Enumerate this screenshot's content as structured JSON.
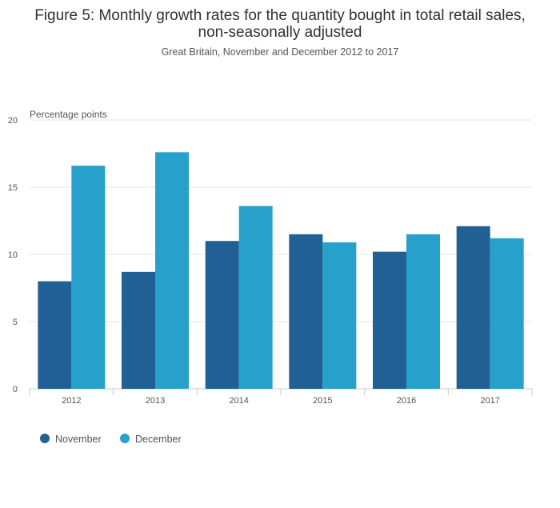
{
  "chart_data": {
    "type": "bar",
    "title_line1": "Figure 5: Monthly growth rates for the quantity bought in total retail sales,",
    "title_line2": "non-seasonally adjusted",
    "subtitle": "Great Britain, November and December 2012 to 2017",
    "ylabel": "Percentage points",
    "xlabel": "",
    "ylim": [
      0,
      20
    ],
    "yticks": [
      0,
      5,
      10,
      15,
      20
    ],
    "grid": true,
    "legend_position": "bottom-left",
    "categories": [
      "2012",
      "2013",
      "2014",
      "2015",
      "2016",
      "2017"
    ],
    "series": [
      {
        "name": "November",
        "color": "#206095",
        "values": [
          8.0,
          8.7,
          11.0,
          11.5,
          10.2,
          12.1
        ]
      },
      {
        "name": "December",
        "color": "#27a0cc",
        "values": [
          16.6,
          17.6,
          13.6,
          10.9,
          11.5,
          11.2
        ]
      }
    ]
  }
}
